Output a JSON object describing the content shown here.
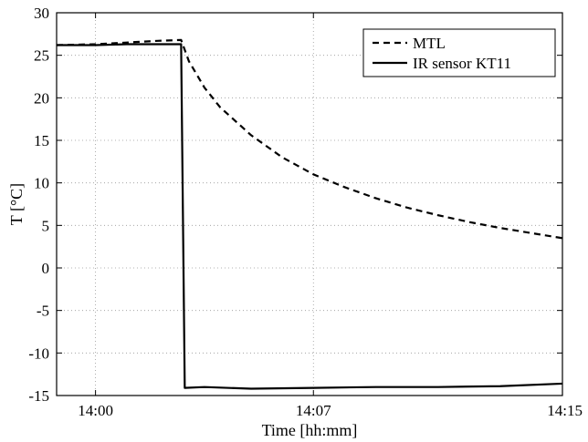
{
  "chart_data": {
    "type": "line",
    "xlabel": "Time [hh:mm]",
    "ylabel": "T [°C]",
    "xlim": [
      "13:58:45",
      "14:15:00"
    ],
    "ylim": [
      -15,
      30
    ],
    "grid": true,
    "legend_position": "top-right",
    "x_ticks": [
      {
        "t": "14:00:00",
        "label": "14:00"
      },
      {
        "t": "14:07:00",
        "label": "14:07"
      },
      {
        "t": "14:15:00",
        "label": "14:15"
      }
    ],
    "y_ticks": [
      {
        "v": -15,
        "label": "-15"
      },
      {
        "v": -10,
        "label": "-10"
      },
      {
        "v": -5,
        "label": "-5"
      },
      {
        "v": 0,
        "label": "0"
      },
      {
        "v": 5,
        "label": "5"
      },
      {
        "v": 10,
        "label": "10"
      },
      {
        "v": 15,
        "label": "15"
      },
      {
        "v": 20,
        "label": "20"
      },
      {
        "v": 25,
        "label": "25"
      },
      {
        "v": 30,
        "label": "30"
      }
    ],
    "series": [
      {
        "name": "MTL",
        "style": "dashed",
        "color": "#000000",
        "points": [
          [
            "13:58:45",
            26.2
          ],
          [
            "14:00:00",
            26.3
          ],
          [
            "14:01:00",
            26.5
          ],
          [
            "14:02:00",
            26.7
          ],
          [
            "14:02:45",
            26.8
          ],
          [
            "14:03:00",
            24.3
          ],
          [
            "14:03:30",
            21.2
          ],
          [
            "14:04:00",
            18.9
          ],
          [
            "14:05:00",
            15.6
          ],
          [
            "14:06:00",
            13.0
          ],
          [
            "14:07:00",
            11.0
          ],
          [
            "14:08:00",
            9.5
          ],
          [
            "14:09:00",
            8.2
          ],
          [
            "14:10:00",
            7.1
          ],
          [
            "14:11:00",
            6.2
          ],
          [
            "14:12:00",
            5.4
          ],
          [
            "14:13:00",
            4.7
          ],
          [
            "14:14:00",
            4.1
          ],
          [
            "14:15:00",
            3.5
          ]
        ]
      },
      {
        "name": "IR sensor KT11",
        "style": "solid",
        "color": "#000000",
        "points": [
          [
            "13:58:45",
            26.2
          ],
          [
            "14:00:00",
            26.2
          ],
          [
            "14:01:00",
            26.3
          ],
          [
            "14:02:00",
            26.3
          ],
          [
            "14:02:45",
            26.3
          ],
          [
            "14:02:52",
            -14.1
          ],
          [
            "14:03:30",
            -14.0
          ],
          [
            "14:05:00",
            -14.2
          ],
          [
            "14:07:00",
            -14.1
          ],
          [
            "14:09:00",
            -14.0
          ],
          [
            "14:11:00",
            -14.0
          ],
          [
            "14:13:00",
            -13.9
          ],
          [
            "14:15:00",
            -13.6
          ]
        ]
      }
    ]
  }
}
